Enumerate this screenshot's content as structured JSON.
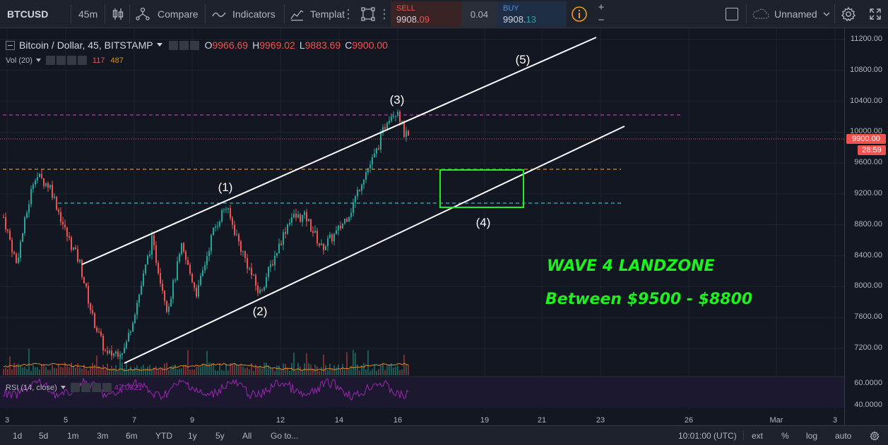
{
  "toolbar": {
    "symbol": "BTCUSD",
    "interval": "45m",
    "compare_label": "Compare",
    "indicators_label": "Indicators",
    "templates_label": "Templat",
    "sell_label": "SELL",
    "sell_price_main": "9908.",
    "sell_price_frac": "09",
    "spread": "0.04",
    "buy_label": "BUY",
    "buy_price_main": "9908.",
    "buy_price_frac": "13",
    "layout_name": "Unnamed"
  },
  "legend": {
    "title": "Bitcoin / Dollar, 45, BITSTAMP",
    "o_label": "O",
    "o_value": "9966.69",
    "h_label": "H",
    "h_value": "9969.02",
    "l_label": "L",
    "l_value": "9883.69",
    "c_label": "C",
    "c_value": "9900.00",
    "vol_label": "Vol (20)",
    "vol_value1": "117",
    "vol_value2": "487",
    "rsi_label": "RSI (14, close)",
    "rsi_value": "47.0321"
  },
  "price_axis": {
    "ticks": [
      "11200.00",
      "10800.00",
      "10400.00",
      "10000.00",
      "9600.00",
      "9200.00",
      "8800.00",
      "8400.00",
      "8000.00",
      "7600.00",
      "7200.00"
    ],
    "last_price": "9900.00",
    "countdown": "28:59",
    "rsi_ticks": [
      "60.0000",
      "40.0000"
    ]
  },
  "time_axis": {
    "ticks": [
      "3",
      "5",
      "7",
      "9",
      "12",
      "14",
      "16",
      "19",
      "21",
      "23",
      "26",
      "Mar",
      "3"
    ]
  },
  "annotations": {
    "wave1": "(1)",
    "wave2": "(2)",
    "wave3": "(3)",
    "wave4": "(4)",
    "wave5": "(5)",
    "headline": "WAVE 4 LANDZONE",
    "subline": "Between $9500 - $8800"
  },
  "bottom": {
    "ranges": [
      "1d",
      "5d",
      "1m",
      "3m",
      "6m",
      "YTD",
      "1y",
      "5y",
      "All"
    ],
    "goto": "Go to...",
    "clock": "10:01:00 (UTC)",
    "ext": "ext",
    "percent": "%",
    "log": "log",
    "auto": "auto"
  },
  "colors": {
    "up": "#26a69a",
    "down": "#ef5350",
    "magenta_line": "#b03cb0",
    "orange_line": "#e38a1c",
    "cyan_line": "#2fb8c6",
    "channel": "#ffffff",
    "zone": "#1ef21e"
  }
}
